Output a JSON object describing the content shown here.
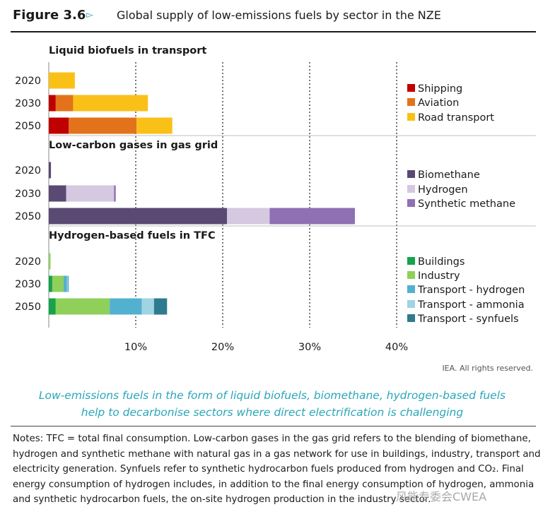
{
  "figure": {
    "number": "Figure 3.6",
    "marker": "▻",
    "title": "Global supply of low-emissions fuels by sector in the NZE"
  },
  "chart_data": {
    "type": "bar",
    "orientation": "horizontal",
    "stacked": true,
    "xlim": [
      0,
      40
    ],
    "x_ticks": [
      "10%",
      "20%",
      "30%",
      "40%"
    ],
    "grid": "vertical dotted",
    "panels": [
      {
        "title": "Liquid biofuels in transport",
        "categories": [
          "2020",
          "2030",
          "2050"
        ],
        "series": [
          {
            "name": "Shipping",
            "color": "#c00000",
            "values": [
              0,
              0.8,
              2.3
            ]
          },
          {
            "name": "Aviation",
            "color": "#e3731b",
            "values": [
              0,
              2.0,
              7.8
            ]
          },
          {
            "name": "Road transport",
            "color": "#f9c118",
            "values": [
              3.0,
              8.6,
              4.1
            ]
          }
        ]
      },
      {
        "title": "Low-carbon gases in gas grid",
        "categories": [
          "2020",
          "2030",
          "2050"
        ],
        "series": [
          {
            "name": "Biomethane",
            "color": "#5a4a73",
            "values": [
              0.25,
              2.0,
              20.5
            ]
          },
          {
            "name": "Hydrogen",
            "color": "#d5c8e0",
            "values": [
              0,
              5.5,
              4.9
            ]
          },
          {
            "name": "Synthetic methane",
            "color": "#8e70b3",
            "values": [
              0,
              0.2,
              9.8
            ]
          }
        ]
      },
      {
        "title": "Hydrogen-based fuels in TFC",
        "categories": [
          "2020",
          "2030",
          "2050"
        ],
        "series": [
          {
            "name": "Buildings",
            "color": "#16a34a",
            "values": [
              0,
              0.4,
              0.8
            ]
          },
          {
            "name": "Industry",
            "color": "#8fd05a",
            "values": [
              0.2,
              1.3,
              6.2
            ]
          },
          {
            "name": "Transport - hydrogen",
            "color": "#53b1d0",
            "values": [
              0,
              0.4,
              3.7
            ]
          },
          {
            "name": "Transport - ammonia",
            "color": "#9fd4e2",
            "values": [
              0,
              0.1,
              1.4
            ]
          },
          {
            "name": "Transport - synfuels",
            "color": "#2f7a8f",
            "values": [
              0,
              0.05,
              1.5
            ]
          }
        ]
      }
    ]
  },
  "credit": "IEA. All rights reserved.",
  "caption": [
    "Low-emissions fuels in the form of liquid biofuels, biomethane, hydrogen-based fuels",
    "help to decarbonise sectors where direct electrification is challenging"
  ],
  "notes": [
    "Notes: TFC = total final consumption. Low-carbon gases in the gas grid refers to the blending of biomethane,",
    "hydrogen and synthetic methane with natural gas in a gas network for use in buildings, industry, transport and",
    "electricity generation. Synfuels refer to synthetic hydrocarbon fuels produced from hydrogen and CO₂. Final",
    "energy consumption of hydrogen includes, in addition to the final energy consumption of hydrogen, ammonia",
    "and synthetic hydrocarbon fuels, the on-site hydrogen production in the industry sector."
  ],
  "watermark": "风能专委会CWEA"
}
